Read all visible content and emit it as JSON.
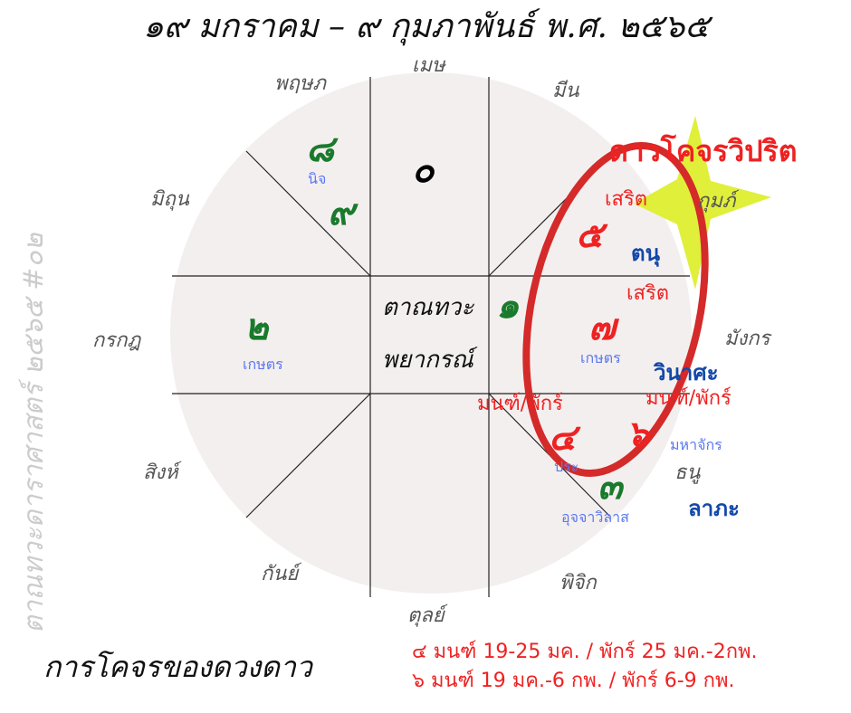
{
  "title": "๑๙ มกราคม – ๙ กุมภาพันธ์ พ.ศ. ๒๕๖๕",
  "watermark": "ตาณทวะดาราศาสตร์ ๒๕๖๕ #๐๒",
  "center": {
    "line1": "ตาณทวะ",
    "line2": "พยากรณ์"
  },
  "signs": {
    "mesha": "เมษ",
    "pruksapa": "พฤษภ",
    "mithun": "มิถุน",
    "korakot": "กรกฎ",
    "sing": "สิงห์",
    "kanya": "กันย์",
    "tun": "ตุลย์",
    "pichik": "พิจิก",
    "thanu": "ธนู",
    "mangkon": "มังกร",
    "kumpha": "กุมภ์",
    "meen": "มีน"
  },
  "planets": {
    "p0": "๐",
    "p8": "๘",
    "p9": "๙",
    "p2": "๒",
    "p1": "๑",
    "p5": "๕",
    "p7": "๗",
    "p4": "๔",
    "p6": "๖",
    "p3": "๓"
  },
  "labels": {
    "nij": "นิจ",
    "kaset_left": "เกษตร",
    "kaset_right": "เกษตร",
    "serit_1": "เสริต",
    "serit_2": "เสริต",
    "mon_puk_1": "มนฑ์/พักร์",
    "mon_puk_2": "มนฑ์/พักร์",
    "pra": "ประ",
    "mahajak": "มหาจักร",
    "uchawilas": "อุจจาวิลาส",
    "tanu": "ตนุ",
    "winasa": "วินาศะ",
    "lapha": "ลาภะ"
  },
  "highlight_title": "ดาวโคจรวิปริต",
  "footer": {
    "caption": "การโคจรของดวงดาว",
    "note1": "๔ มนฑ์ 19-25 มค. / พักร์ 25 มค.-2กพ.",
    "note2": "๖ มนฑ์ 19 มค.-6 กพ. / พักร์ 6-9 กพ."
  },
  "colors": {
    "circle": "#f4efef",
    "ring": "#d42a2a",
    "star": "#e0ef3a",
    "accent_red": "#ee2222",
    "planet_green": "#1a7a2c"
  }
}
